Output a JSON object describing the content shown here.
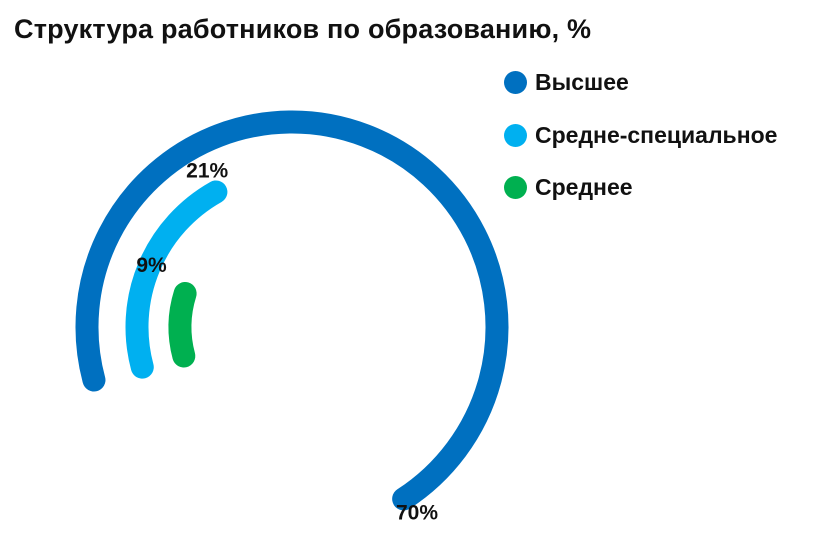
{
  "title": "Структура работников по образованию, %",
  "colors": {
    "higher": "#0070C0",
    "special": "#00B0F0",
    "secondary": "#00B050"
  },
  "chart_data": {
    "type": "radial-bar",
    "title": "Структура работников по образованию, %",
    "series": [
      {
        "name": "Высшее",
        "value": 70,
        "label": "70%",
        "color": "#0070C0"
      },
      {
        "name": "Средне-специальное",
        "value": 21,
        "label": "21%",
        "color": "#00B0F0"
      },
      {
        "name": "Среднее",
        "value": 9,
        "label": "9%",
        "color": "#00B050"
      }
    ],
    "legend_position": "top-right"
  }
}
